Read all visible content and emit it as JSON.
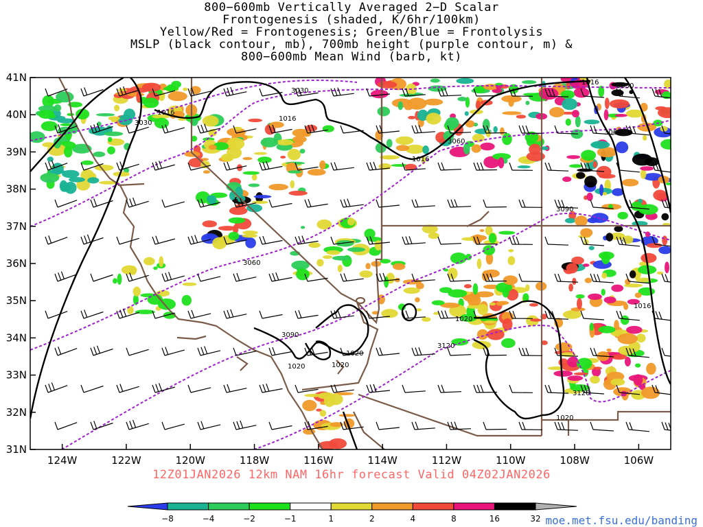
{
  "title": {
    "lines": [
      "800−600mb Vertically Averaged 2−D Scalar",
      "Frontogenesis (shaded, K/6hr/100km)",
      "Yellow/Red = Frontogenesis;  Green/Blue = Frontolysis",
      "MSLP (black contour, mb), 700mb height (purple contour, m) &",
      "800−600mb Mean Wind (barb, kt)"
    ]
  },
  "axes": {
    "lat_labels": [
      "41N",
      "40N",
      "39N",
      "38N",
      "37N",
      "36N",
      "35N",
      "34N",
      "33N",
      "32N",
      "31N"
    ],
    "lon_labels": [
      "124W",
      "122W",
      "120W",
      "118W",
      "116W",
      "114W",
      "112W",
      "110W",
      "108W",
      "106W"
    ]
  },
  "contour_labels": {
    "mslp": [
      "1016",
      "1016",
      "1016",
      "1016",
      "1016",
      "1020",
      "1020",
      "1020",
      "1020",
      "1020"
    ],
    "height700": [
      "3030",
      "3030",
      "3030",
      "3060",
      "3060",
      "3060",
      "3090",
      "3090",
      "3120",
      "3120"
    ]
  },
  "valid_text": "12Z01JAN2026 12km NAM 16hr forecast Valid 04Z02JAN2026",
  "colorbar": {
    "labels": [
      "−8",
      "−4",
      "−2",
      "−1",
      "1",
      "2",
      "4",
      "8",
      "16",
      "32"
    ],
    "colors": [
      "#2a3de8",
      "#19b394",
      "#2ccc5a",
      "#1de01d",
      "#ffffff",
      "#e0d835",
      "#f09a2a",
      "#f04a3a",
      "#e8167a",
      "#000000",
      "#b0b0b0"
    ]
  },
  "credit": "moe.met.fsu.edu/banding",
  "colors": {
    "mslp": "#000000",
    "height": "#a020d0",
    "border": "#7a5a48"
  }
}
